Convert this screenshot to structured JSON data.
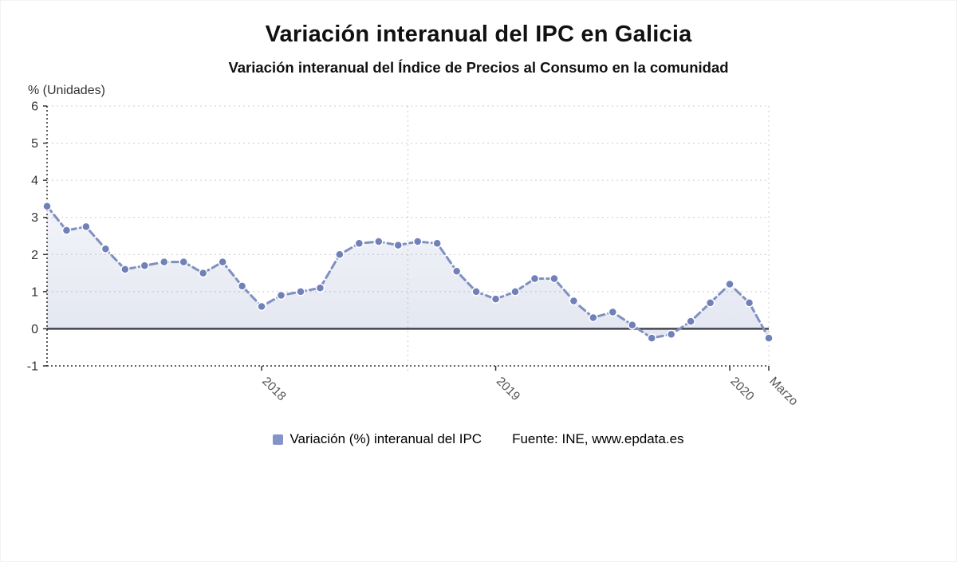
{
  "header": {
    "title": "Variación interanual del IPC en Galicia",
    "subtitle": "Variación interanual del Índice de Precios al Consumo en la comunidad"
  },
  "chart_data": {
    "type": "area",
    "title": "Variación interanual del IPC en Galicia",
    "subtitle": "Variación interanual del Índice de Precios al Consumo en la comunidad",
    "xlabel": "",
    "ylabel": "% (Unidades)",
    "ylim": [
      -1,
      6
    ],
    "y_ticks": [
      6,
      5,
      4,
      3,
      2,
      1,
      0,
      -1
    ],
    "grid": true,
    "legend_position": "bottom",
    "series": [
      {
        "name": "Variación (%) interanual del IPC",
        "x": [
          "feb. 2017",
          "mar. 2017",
          "abr. 2017",
          "may. 2017",
          "jun. 2017",
          "jul. 2017",
          "ago. 2017",
          "sep. 2017",
          "oct. 2017",
          "nov. 2017",
          "dic. 2017",
          "ene. 2018",
          "feb. 2018",
          "mar. 2018",
          "abr. 2018",
          "may. 2018",
          "jun. 2018",
          "jul. 2018",
          "ago. 2018",
          "sep. 2018",
          "oct. 2018",
          "nov. 2018",
          "dic. 2018",
          "ene. 2019",
          "feb. 2019",
          "mar. 2019",
          "abr. 2019",
          "may. 2019",
          "jun. 2019",
          "jul. 2019",
          "ago. 2019",
          "sep. 2019",
          "oct. 2019",
          "nov. 2019",
          "dic. 2019",
          "ene. 2020",
          "feb. 2020",
          "mar. 2020"
        ],
        "values": [
          3.3,
          2.65,
          2.75,
          2.15,
          1.6,
          1.7,
          1.8,
          1.8,
          1.5,
          1.8,
          1.15,
          0.6,
          0.9,
          1.0,
          1.1,
          2.0,
          2.3,
          2.35,
          2.25,
          2.35,
          2.3,
          1.55,
          1.0,
          0.8,
          1.0,
          1.35,
          1.35,
          0.75,
          0.3,
          0.45,
          0.1,
          -0.25,
          -0.15,
          0.2,
          0.7,
          1.2,
          0.7,
          -0.25
        ]
      }
    ],
    "x_tick_labels": [
      {
        "label": "2018",
        "index": 11
      },
      {
        "label": "2019",
        "index": 23
      },
      {
        "label": "2020",
        "index": 35
      },
      {
        "label": "Marzo",
        "index": 37
      }
    ],
    "colors": {
      "line": "#8090c0",
      "marker": "#7080b8",
      "marker_border": "#ffffff",
      "area_top": "rgba(128,144,192,0.10)",
      "area_bottom": "rgba(128,144,192,0.22)",
      "gridline": "#cccccc",
      "axis": "#333333",
      "zero_line": "#3d3d46",
      "y_label_color": "#333333",
      "x_label_color": "#555555"
    }
  },
  "legend": {
    "label": "Variación (%) interanual del IPC",
    "marker_color": "#8494c8"
  },
  "source": {
    "text": "Fuente: INE, www.epdata.es"
  }
}
